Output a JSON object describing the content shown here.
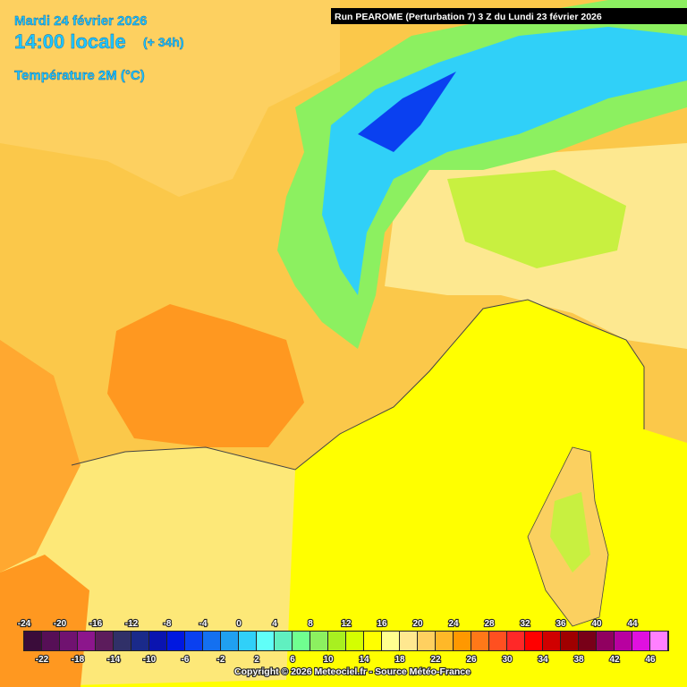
{
  "header": {
    "date": "Mardi 24 février 2026",
    "time": "14:00 locale",
    "lead": "(+ 34h)",
    "variable": "Température 2M (°C)",
    "run": "Run PEAROME (Perturbation 7) 3 Z du Lundi 23 février 2026"
  },
  "legend": {
    "values": [
      -24,
      -22,
      -20,
      -18,
      -16,
      -14,
      -12,
      -10,
      -8,
      -6,
      -4,
      -2,
      0,
      2,
      4,
      6,
      8,
      10,
      12,
      14,
      16,
      18,
      20,
      22,
      24,
      26,
      28,
      30,
      32,
      34,
      36,
      38,
      40,
      42,
      44,
      46
    ],
    "colors": [
      "#3a0c3a",
      "#560f56",
      "#701270",
      "#8c168c",
      "#5c1c5c",
      "#303068",
      "#1a2a8a",
      "#0a14b0",
      "#0018e0",
      "#0a40f0",
      "#1470f0",
      "#20a0f0",
      "#30d0f8",
      "#60fff8",
      "#60f0c0",
      "#70ff90",
      "#8cf060",
      "#a8f020",
      "#d4ff00",
      "#ffff00",
      "#ffff90",
      "#ffe890",
      "#ffd060",
      "#ffb828",
      "#ff9800",
      "#ff7818",
      "#ff5020",
      "#ff2828",
      "#ff0000",
      "#d00000",
      "#a00000",
      "#780018",
      "#900060",
      "#b800a0",
      "#e010e0",
      "#ff80ff"
    ]
  },
  "footer": {
    "copyright": "Copyright © 2026 Meteociel.fr - Source Météo-France"
  }
}
